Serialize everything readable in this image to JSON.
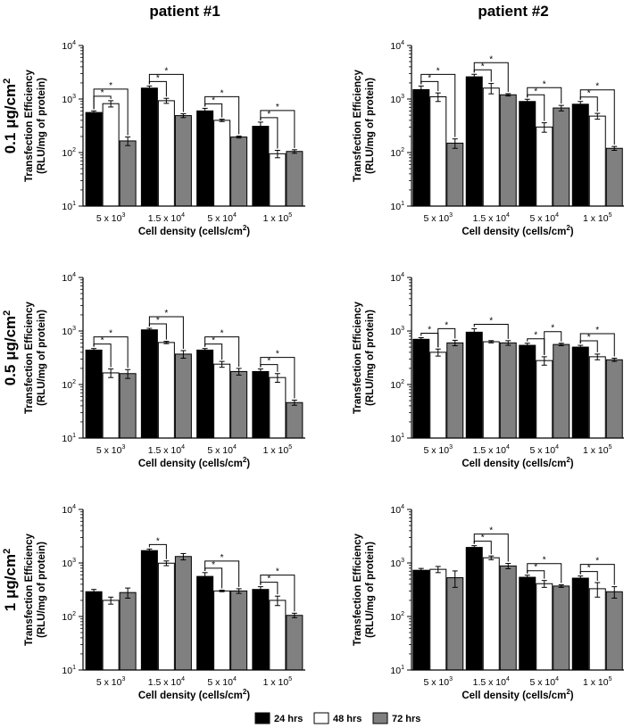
{
  "column_titles": [
    "patient #1",
    "patient #2"
  ],
  "row_titles": [
    {
      "value": "0.1",
      "unit": "μg/cm",
      "exp": "2"
    },
    {
      "value": "0.5",
      "unit": "μg/cm",
      "exp": "2"
    },
    {
      "value": "1",
      "unit": "μg/cm",
      "exp": "2"
    }
  ],
  "ylabel_line1": "Transfection Efficiency",
  "ylabel_line2": "(RLU/mg of protein)",
  "xlabel": "Cell density (cells/cm",
  "xlabel_exp": "2",
  "xlabel_end": ")",
  "legend": [
    {
      "label": "24 hrs",
      "color": "#000000"
    },
    {
      "label": "48 hrs",
      "color": "#ffffff"
    },
    {
      "label": "72 hrs",
      "color": "#808080"
    }
  ],
  "chart_data": [
    {
      "type": "bar",
      "title": "patient #1, 0.1 μg/cm2",
      "yscale": "log",
      "ylim": [
        10,
        10000
      ],
      "categories": [
        "5 x 10^3",
        "1.5 x 10^4",
        "5 x 10^4",
        "1 x 10^5"
      ],
      "series": [
        {
          "name": "24 hrs",
          "values": [
            560,
            1600,
            600,
            310
          ],
          "errors": [
            40,
            150,
            70,
            60
          ]
        },
        {
          "name": "48 hrs",
          "values": [
            820,
            930,
            400,
            95
          ],
          "errors": [
            110,
            100,
            20,
            15
          ]
        },
        {
          "name": "72 hrs",
          "values": [
            165,
            490,
            195,
            105
          ],
          "errors": [
            30,
            40,
            8,
            8
          ]
        }
      ],
      "significance": [
        [
          0,
          0,
          1
        ],
        [
          0,
          0,
          2
        ],
        [
          1,
          0,
          1
        ],
        [
          1,
          0,
          2
        ],
        [
          2,
          0,
          1
        ],
        [
          2,
          0,
          2
        ],
        [
          3,
          0,
          1
        ],
        [
          3,
          0,
          2
        ]
      ]
    },
    {
      "type": "bar",
      "title": "patient #2, 0.1 μg/cm2",
      "yscale": "log",
      "ylim": [
        10,
        10000
      ],
      "categories": [
        "5 x 10^3",
        "1.5 x 10^4",
        "5 x 10^4",
        "1 x 10^5"
      ],
      "series": [
        {
          "name": "24 hrs",
          "values": [
            1500,
            2600,
            900,
            800
          ],
          "errors": [
            250,
            300,
            90,
            100
          ]
        },
        {
          "name": "48 hrs",
          "values": [
            1100,
            1600,
            300,
            480
          ],
          "errors": [
            200,
            350,
            60,
            60
          ]
        },
        {
          "name": "72 hrs",
          "values": [
            150,
            1200,
            680,
            120
          ],
          "errors": [
            30,
            60,
            80,
            10
          ]
        }
      ],
      "significance": [
        [
          0,
          0,
          1
        ],
        [
          0,
          0,
          2
        ],
        [
          1,
          0,
          1
        ],
        [
          1,
          0,
          2
        ],
        [
          2,
          0,
          1
        ],
        [
          2,
          0,
          2
        ],
        [
          3,
          0,
          1
        ],
        [
          3,
          0,
          2
        ]
      ]
    },
    {
      "type": "bar",
      "title": "patient #1, 0.5 μg/cm2",
      "yscale": "log",
      "ylim": [
        10,
        10000
      ],
      "categories": [
        "5 x 10^3",
        "1.5 x 10^4",
        "5 x 10^4",
        "1 x 10^5"
      ],
      "series": [
        {
          "name": "24 hrs",
          "values": [
            440,
            1050,
            440,
            175
          ],
          "errors": [
            30,
            70,
            30,
            20
          ]
        },
        {
          "name": "48 hrs",
          "values": [
            165,
            610,
            240,
            135
          ],
          "errors": [
            30,
            30,
            30,
            25
          ]
        },
        {
          "name": "72 hrs",
          "values": [
            160,
            370,
            175,
            46
          ],
          "errors": [
            30,
            60,
            25,
            5
          ]
        }
      ],
      "significance": [
        [
          0,
          0,
          1
        ],
        [
          0,
          0,
          2
        ],
        [
          1,
          0,
          1
        ],
        [
          1,
          0,
          2
        ],
        [
          2,
          0,
          1
        ],
        [
          2,
          0,
          2
        ],
        [
          3,
          0,
          1
        ],
        [
          3,
          0,
          2
        ]
      ]
    },
    {
      "type": "bar",
      "title": "patient #2, 0.5 μg/cm2",
      "yscale": "log",
      "ylim": [
        10,
        10000
      ],
      "categories": [
        "5 x 10^3",
        "1.5 x 10^4",
        "5 x 10^4",
        "1 x 10^5"
      ],
      "series": [
        {
          "name": "24 hrs",
          "values": [
            700,
            950,
            540,
            500
          ],
          "errors": [
            50,
            150,
            50,
            40
          ]
        },
        {
          "name": "48 hrs",
          "values": [
            400,
            630,
            280,
            330
          ],
          "errors": [
            60,
            30,
            50,
            40
          ]
        },
        {
          "name": "72 hrs",
          "values": [
            600,
            600,
            560,
            290
          ],
          "errors": [
            70,
            60,
            30,
            20
          ]
        }
      ],
      "significance": [
        [
          0,
          0,
          1
        ],
        [
          0,
          1,
          2
        ],
        [
          1,
          0,
          2
        ],
        [
          2,
          0,
          1
        ],
        [
          2,
          1,
          2
        ],
        [
          3,
          0,
          1
        ],
        [
          3,
          0,
          2
        ]
      ]
    },
    {
      "type": "bar",
      "title": "patient #1, 1 μg/cm2",
      "yscale": "log",
      "ylim": [
        10,
        10000
      ],
      "categories": [
        "5 x 10^3",
        "1.5 x 10^4",
        "5 x 10^4",
        "1 x 10^5"
      ],
      "series": [
        {
          "name": "24 hrs",
          "values": [
            290,
            1700,
            560,
            320
          ],
          "errors": [
            30,
            120,
            100,
            40
          ]
        },
        {
          "name": "48 hrs",
          "values": [
            200,
            990,
            300,
            200
          ],
          "errors": [
            30,
            100,
            10,
            40
          ]
        },
        {
          "name": "72 hrs",
          "values": [
            280,
            1320,
            300,
            105
          ],
          "errors": [
            60,
            180,
            30,
            10
          ]
        }
      ],
      "significance": [
        [
          1,
          0,
          1
        ],
        [
          2,
          0,
          1
        ],
        [
          2,
          0,
          2
        ],
        [
          3,
          0,
          1
        ],
        [
          3,
          0,
          2
        ]
      ]
    },
    {
      "type": "bar",
      "title": "patient #2, 1 μg/cm2",
      "yscale": "log",
      "ylim": [
        10,
        10000
      ],
      "categories": [
        "5 x 10^3",
        "1.5 x 10^4",
        "5 x 10^4",
        "1 x 10^5"
      ],
      "series": [
        {
          "name": "24 hrs",
          "values": [
            730,
            1950,
            540,
            520
          ],
          "errors": [
            60,
            150,
            50,
            50
          ]
        },
        {
          "name": "48 hrs",
          "values": [
            760,
            1250,
            410,
            330
          ],
          "errors": [
            100,
            100,
            60,
            100
          ]
        },
        {
          "name": "72 hrs",
          "values": [
            530,
            880,
            370,
            290
          ],
          "errors": [
            180,
            100,
            20,
            70
          ]
        }
      ],
      "significance": [
        [
          1,
          0,
          1
        ],
        [
          1,
          0,
          2
        ],
        [
          2,
          0,
          1
        ],
        [
          2,
          0,
          2
        ],
        [
          3,
          0,
          1
        ],
        [
          3,
          0,
          2
        ]
      ]
    }
  ]
}
